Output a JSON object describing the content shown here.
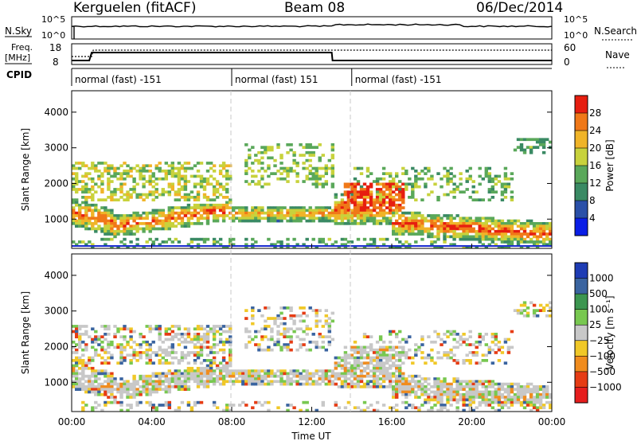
{
  "header": {
    "radar": "Kerguelen (fitACF)",
    "beam": "Beam 08",
    "date": "06/Dec/2014"
  },
  "noise_panel": {
    "left_label": "N.Sky",
    "right_label": "N.Search",
    "left_ticks": [
      "10^5",
      "10^0"
    ],
    "right_ticks": [
      "10^5",
      "10^0"
    ]
  },
  "freq_panel": {
    "left_label_line1": "Freq.",
    "left_label_line2": "[MHz]",
    "right_label": "Nave",
    "left_ticks": [
      "18",
      "8"
    ],
    "right_ticks": [
      "60",
      "0"
    ]
  },
  "cpid": {
    "label": "CPID",
    "segments": [
      {
        "start_hour": 0.0,
        "end_hour": 8.0,
        "text": "normal (fast) -151"
      },
      {
        "start_hour": 8.0,
        "end_hour": 14.0,
        "text": "normal (fast) 151"
      },
      {
        "start_hour": 14.0,
        "end_hour": 24.0,
        "text": "normal (fast) -151"
      }
    ]
  },
  "power_colorbar": {
    "label": "Power [dB]",
    "ticks": [
      "4",
      "8",
      "12",
      "16",
      "20",
      "24",
      "28"
    ],
    "colors": [
      "#0a1ee6",
      "#2a50a8",
      "#3a8a64",
      "#5aa85a",
      "#c8d23c",
      "#f0b428",
      "#f07818",
      "#e61e10"
    ]
  },
  "velocity_colorbar": {
    "label": "Velocity [m s⁻¹]",
    "ticks": [
      "1000",
      "500",
      "100",
      "25",
      "−25",
      "−100",
      "−500",
      "−1000"
    ],
    "colors": [
      "#1e3cb4",
      "#3a64a0",
      "#3c9650",
      "#78c850",
      "#c8c8c8",
      "#f0c828",
      "#f08c1e",
      "#e63c14",
      "#e61e1e"
    ]
  },
  "axes": {
    "ylabel": "Slant Range [km]",
    "xlabel": "Time UT",
    "y_ticks": [
      "1000",
      "2000",
      "3000",
      "4000"
    ],
    "x_ticks": [
      "00:00",
      "04:00",
      "08:00",
      "12:00",
      "16:00",
      "20:00",
      "00:00"
    ]
  },
  "chart_data": {
    "type": "heatmap",
    "x_range_hours": [
      0,
      24
    ],
    "y_range_km": [
      180,
      4600
    ],
    "power_regions": [
      {
        "t0": 0.0,
        "t1": 8.0,
        "r0": 400,
        "r1": 1400,
        "level": "high",
        "note": "main band"
      },
      {
        "t0": 9.5,
        "t1": 13.5,
        "r0": 800,
        "r1": 1300,
        "level": "high"
      },
      {
        "t0": 13.0,
        "t1": 24.0,
        "r0": 500,
        "r1": 1700,
        "level": "high"
      },
      {
        "t0": 0.0,
        "t1": 8.0,
        "r0": 1400,
        "r1": 2800,
        "level": "medium"
      },
      {
        "t0": 8.0,
        "t1": 13.0,
        "r0": 2000,
        "r1": 3300,
        "level": "low"
      }
    ]
  }
}
